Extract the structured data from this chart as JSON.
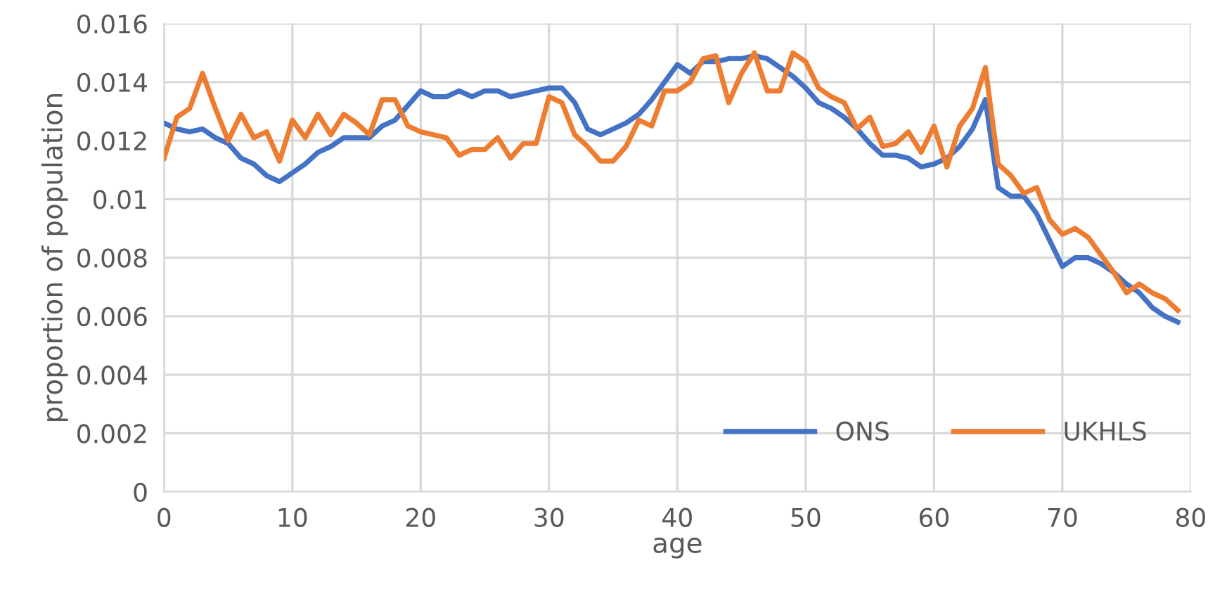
{
  "chart_data": {
    "type": "line",
    "xlabel": "age",
    "ylabel": "proportion of population",
    "x": [
      0,
      1,
      2,
      3,
      4,
      5,
      6,
      7,
      8,
      9,
      10,
      11,
      12,
      13,
      14,
      15,
      16,
      17,
      18,
      19,
      20,
      21,
      22,
      23,
      24,
      25,
      26,
      27,
      28,
      29,
      30,
      31,
      32,
      33,
      34,
      35,
      36,
      37,
      38,
      39,
      40,
      41,
      42,
      43,
      44,
      45,
      46,
      47,
      48,
      49,
      50,
      51,
      52,
      53,
      54,
      55,
      56,
      57,
      58,
      59,
      60,
      61,
      62,
      63,
      64,
      65,
      66,
      67,
      68,
      69,
      70,
      71,
      72,
      73,
      74,
      75,
      76,
      77,
      78,
      79
    ],
    "series": [
      {
        "name": "ONS",
        "color": "#4472c4",
        "values": [
          0.0126,
          0.0124,
          0.0123,
          0.0124,
          0.0121,
          0.0119,
          0.0114,
          0.0112,
          0.0108,
          0.0106,
          0.0109,
          0.0112,
          0.0116,
          0.0118,
          0.0121,
          0.0121,
          0.0121,
          0.0125,
          0.0127,
          0.0132,
          0.0137,
          0.0135,
          0.0135,
          0.0137,
          0.0135,
          0.0137,
          0.0137,
          0.0135,
          0.0136,
          0.0137,
          0.0138,
          0.0138,
          0.0133,
          0.0124,
          0.0122,
          0.0124,
          0.0126,
          0.0129,
          0.0134,
          0.014,
          0.0146,
          0.0143,
          0.0147,
          0.0147,
          0.0148,
          0.0148,
          0.0149,
          0.0148,
          0.0145,
          0.0142,
          0.0138,
          0.0133,
          0.0131,
          0.0128,
          0.0124,
          0.0119,
          0.0115,
          0.0115,
          0.0114,
          0.0111,
          0.0112,
          0.0114,
          0.0118,
          0.0124,
          0.0134,
          0.0104,
          0.0101,
          0.0101,
          0.0095,
          0.0086,
          0.0077,
          0.008,
          0.008,
          0.0078,
          0.0075,
          0.0071,
          0.0068,
          0.0063,
          0.006,
          0.0058
        ]
      },
      {
        "name": "UKHLS",
        "color": "#ed7d31",
        "values": [
          0.0114,
          0.0128,
          0.0131,
          0.0143,
          0.0131,
          0.012,
          0.0129,
          0.0121,
          0.0123,
          0.0113,
          0.0127,
          0.0121,
          0.0129,
          0.0122,
          0.0129,
          0.0126,
          0.0122,
          0.0134,
          0.0134,
          0.0125,
          0.0123,
          0.0122,
          0.0121,
          0.0115,
          0.0117,
          0.0117,
          0.0121,
          0.0114,
          0.0119,
          0.0119,
          0.0135,
          0.0133,
          0.0122,
          0.0118,
          0.0113,
          0.0113,
          0.0118,
          0.0127,
          0.0125,
          0.0137,
          0.0137,
          0.014,
          0.0148,
          0.0149,
          0.0133,
          0.0143,
          0.015,
          0.0137,
          0.0137,
          0.015,
          0.0147,
          0.0138,
          0.0135,
          0.0133,
          0.0124,
          0.0128,
          0.0118,
          0.0119,
          0.0123,
          0.0116,
          0.0125,
          0.0111,
          0.0125,
          0.0131,
          0.0145,
          0.0112,
          0.0108,
          0.0102,
          0.0104,
          0.0093,
          0.0088,
          0.009,
          0.0087,
          0.0081,
          0.0075,
          0.0068,
          0.0071,
          0.0068,
          0.0066,
          0.0062
        ]
      }
    ],
    "xlim": [
      0,
      80
    ],
    "xticks": [
      0,
      10,
      20,
      30,
      40,
      50,
      60,
      70,
      80
    ],
    "ylim": [
      0,
      0.016
    ],
    "yticks": [
      0,
      0.002,
      0.004,
      0.006,
      0.008,
      0.01,
      0.012,
      0.014,
      0.016
    ],
    "grid": true,
    "legend": "bottom right",
    "marker": "none",
    "line_style": "solid"
  }
}
